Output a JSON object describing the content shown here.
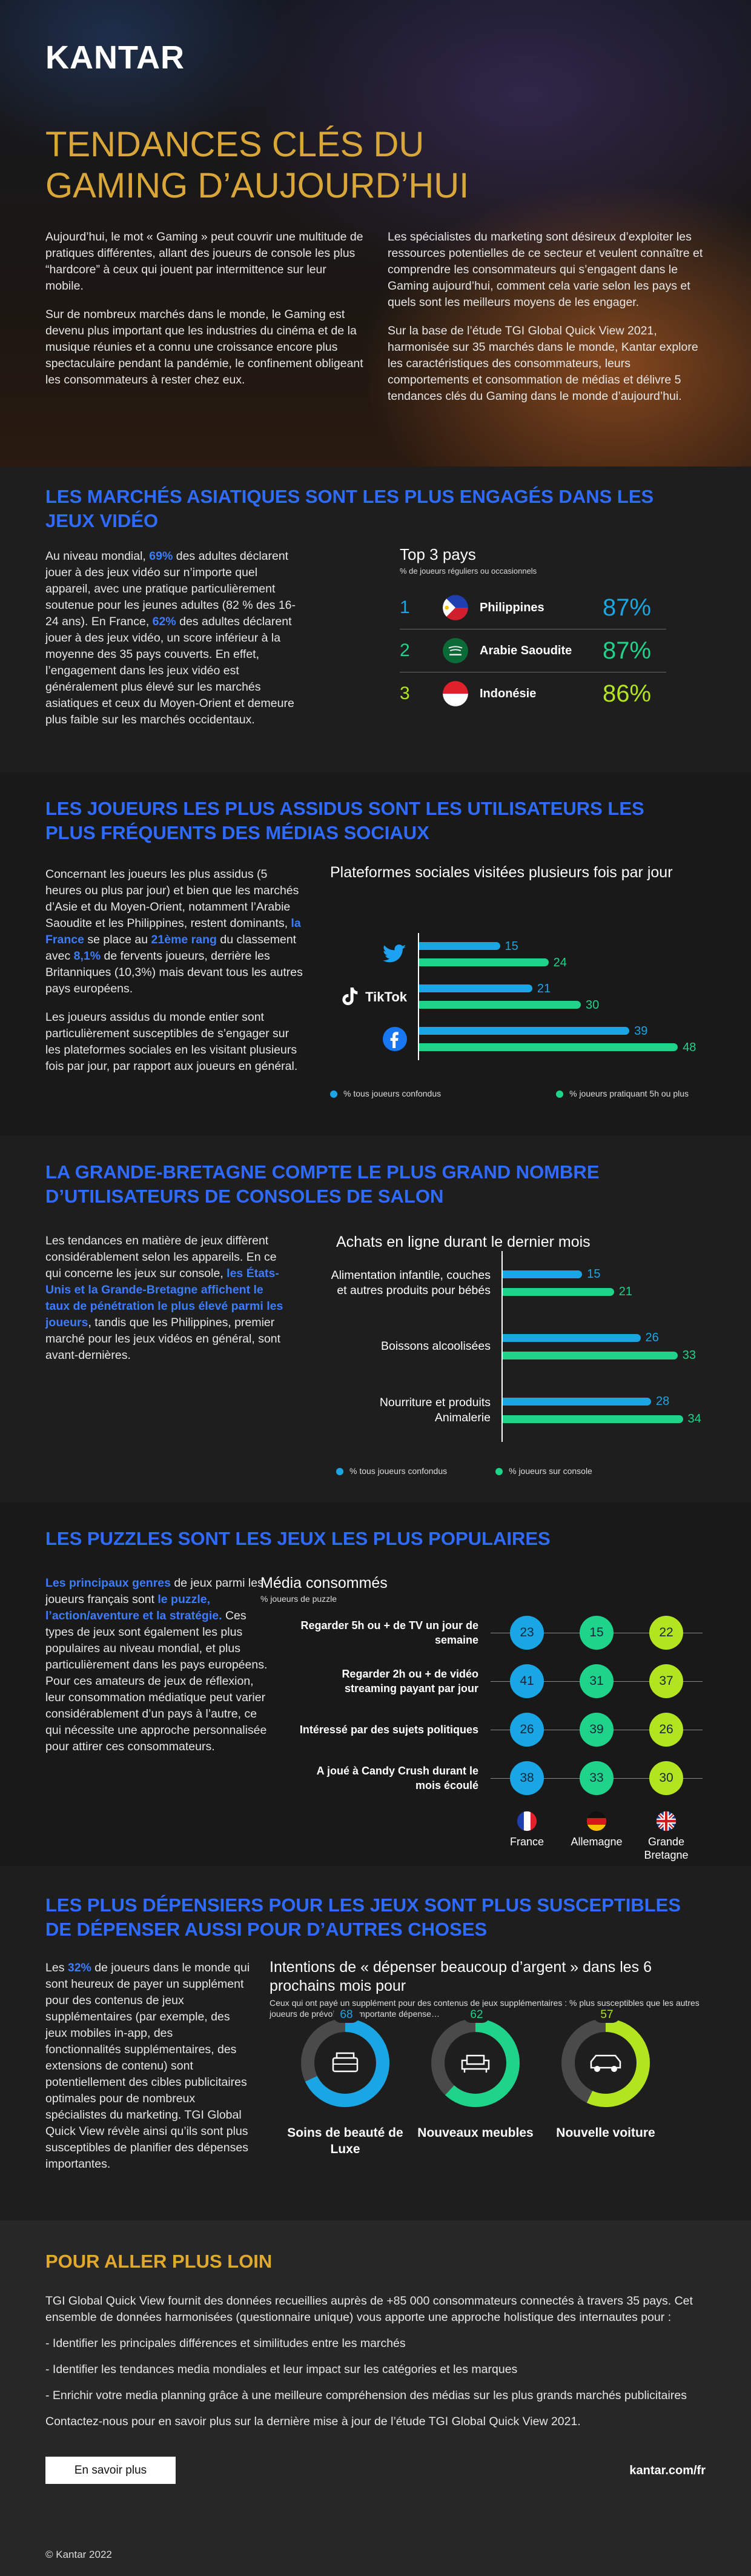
{
  "header": {
    "logo": "KANTAR",
    "title_lines": [
      "TENDANCES CLÉS DU",
      "GAMING D’AUJOURD’HUI"
    ],
    "intro_left": [
      [
        "Aujourd’hui, le mot « Gaming » peut couvrir une multitude de pratiques différentes, allant des joueurs de console les plus “hardcore” à ceux qui jouent par intermittence sur leur mobile."
      ],
      [
        "Sur de nombreux marchés dans le monde, le Gaming est devenu plus important que les industries du cinéma et de la musique réunies et a connu une croissance encore plus spectaculaire pendant la pandémie, le confinement obligeant les consommateurs à rester chez eux."
      ]
    ],
    "intro_right": [
      [
        "Les spécialistes du marketing sont désireux d’exploiter les ressources potentielles de ce secteur et veulent connaître et comprendre les consommateurs qui s’engagent dans le Gaming aujourd’hui, comment cela varie selon les pays et quels sont les meilleurs moyens de les engager."
      ],
      [
        "Sur la base de l’étude TGI Global Quick View 2021, harmonisée sur 35 marchés dans le monde, Kantar explore les caractéristiques des consommateurs, leurs comportements et consommation de médias et délivre 5 tendances clés du Gaming dans le monde d’aujourd’hui."
      ]
    ]
  },
  "sections": [
    {
      "heading": "LES MARCHÉS ASIATIQUES SONT LES PLUS ENGAGÉS DANS LES JEUX VIDÉO",
      "paragraphs": [
        [
          "Au niveau mondial, ",
          {
            "strong": "69%"
          },
          " des adultes déclarent jouer à des jeux vidéo sur n’importe quel appareil, avec une pratique particulièrement soutenue pour les jeunes adultes (82 % des 16-24 ans). En France, ",
          {
            "strong": "62%"
          },
          " des adultes déclarent jouer à des jeux vidéo, un score inférieur à la moyenne des 35 pays couverts. En effet, l’engagement dans les jeux vidéo est généralement plus élevé sur les marchés asiatiques et ceux du Moyen-Orient et demeure plus faible sur les marchés occidentaux."
        ]
      ],
      "top3": {
        "title": "Top 3 pays",
        "subtitle": "% de joueurs réguliers ou occasionnels",
        "rows": [
          {
            "rank": "1",
            "country": "Philippines",
            "value": "87%"
          },
          {
            "rank": "2",
            "country": "Arabie Saoudite",
            "value": "87%"
          },
          {
            "rank": "3",
            "country": "Indonésie",
            "value": "86%"
          }
        ]
      }
    },
    {
      "heading": "LES JOUEURS LES PLUS ASSIDUS SONT LES UTILISATEURS LES PLUS FRÉQUENTS DES MÉDIAS SOCIAUX",
      "paragraphs": [
        [
          "Concernant les joueurs les plus assidus (5 heures ou plus par jour) et bien que les marchés d’Asie et du Moyen-Orient, notamment l’Arabie Saoudite et les Philippines, restent dominants, ",
          {
            "strong": "la France"
          },
          " se place au ",
          {
            "strong": "21ème rang"
          },
          " du classement avec ",
          {
            "strong": "8,1%"
          },
          " de fervents joueurs, derrière les Britanniques (10,3%) mais devant tous les autres pays européens."
        ],
        [
          "Les joueurs assidus du monde entier sont particulièrement susceptibles de s’engager sur les plateformes sociales en les visitant plusieurs fois par jour, par rapport aux joueurs en général."
        ]
      ],
      "chart": {
        "type": "bar",
        "title": "Plateformes sociales visitées plusieurs fois par jour",
        "categories": [
          null,
          "TikTok",
          null
        ],
        "series": [
          {
            "name": "% tous joueurs confondus",
            "color": "#1aa6e4",
            "values": [
              15,
              21,
              39
            ]
          },
          {
            "name": "% joueurs pratiquant 5h ou plus",
            "color": "#1fd38b",
            "values": [
              24,
              30,
              48
            ]
          }
        ],
        "xlim": [
          0,
          50
        ]
      }
    },
    {
      "heading": "LA GRANDE-BRETAGNE COMPTE LE PLUS GRAND NOMBRE D’UTILISATEURS DE CONSOLES DE SALON",
      "paragraphs": [
        [
          "Les tendances en matière de jeux diffèrent considérablement selon les appareils. En ce qui concerne les jeux sur console, ",
          {
            "strong": "les États-Unis et la Grande-Bretagne affichent le taux de pénétration le plus élevé parmi les joueurs"
          },
          ", tandis que les Philippines, premier marché pour les jeux vidéos en général, sont avant-dernières."
        ]
      ],
      "chart": {
        "type": "bar",
        "title": "Achats en ligne durant le dernier mois",
        "categories": [
          "Alimentation infantile, couches et autres produits pour bébés",
          "Boissons alcoolisées",
          "Nourriture et produits Animalerie"
        ],
        "series": [
          {
            "name": "% tous joueurs confondus",
            "color": "#1aa6e4",
            "values": [
              15,
              26,
              28
            ]
          },
          {
            "name": "% joueurs sur console",
            "color": "#1fd38b",
            "values": [
              21,
              33,
              34
            ]
          }
        ],
        "xlim": [
          0,
          40
        ]
      }
    },
    {
      "heading": "LES PUZZLES SONT LES JEUX LES PLUS POPULAIRES",
      "paragraphs": [
        [
          {
            "strong": "Les principaux genres"
          },
          " de jeux parmi les joueurs français sont ",
          {
            "strong": "le puzzle, l’action/aventure et la stratégie."
          },
          " Ces types de jeux sont également les plus populaires au niveau mondial, et plus particulièrement dans les pays européens. Pour ces amateurs de jeux de réflexion, leur consommation médiatique peut varier considérablement d’un pays à l’autre, ce qui nécessite une approche personnalisée pour attirer ces consommateurs."
        ]
      ],
      "chart": {
        "type": "bubble-grid",
        "title": "Média consommés",
        "subtitle": "% joueurs de puzzle",
        "categories": [
          "Regarder 5h ou + de TV un jour de semaine",
          "Regarder 2h ou + de vidéo streaming payant par jour",
          "Intéressé par des sujets politiques",
          "A joué à Candy Crush durant le mois écoulé"
        ],
        "series": [
          {
            "name": "France",
            "color": "#1aa6e4",
            "values": [
              23,
              41,
              26,
              38
            ]
          },
          {
            "name": "Allemagne",
            "color": "#1fd38b",
            "values": [
              15,
              31,
              39,
              33
            ]
          },
          {
            "name": "Grande Bretagne",
            "color": "#b3e420",
            "values": [
              22,
              37,
              26,
              30
            ]
          }
        ]
      }
    },
    {
      "heading": "LES PLUS DÉPENSIERS POUR LES JEUX SONT PLUS SUSCEPTIBLES DE DÉPENSER AUSSI POUR D’AUTRES CHOSES",
      "paragraphs": [
        [
          "Les ",
          {
            "strong": "32%"
          },
          " de joueurs dans le monde qui sont heureux de payer un supplément pour des contenus de jeux supplémentaires (par exemple, des jeux mobiles in-app, des fonctionnalités supplémentaires, des extensions de contenu) sont potentiellement des cibles publicitaires optimales pour de nombreux spécialistes du marketing. TGI Global Quick View révèle ainsi qu’ils sont plus susceptibles de planifier des dépenses importantes."
        ]
      ],
      "chart": {
        "type": "donut",
        "title": "Intentions de « dépenser beaucoup d’argent » dans les 6 prochains mois pour",
        "subtitle": "Ceux qui ont payé un supplément pour des contenus de jeux supplémentaires : % plus susceptibles que les autres joueurs de prévoir une importante dépense…",
        "categories": [
          "Soins de beauté de Luxe",
          "Nouveaux meubles",
          "Nouvelle voiture"
        ],
        "values": [
          68,
          62,
          57
        ],
        "colors": [
          "#1aa6e4",
          "#1fd38b",
          "#b3e420"
        ],
        "lim": [
          0,
          100
        ]
      }
    }
  ],
  "more": {
    "heading": "POUR ALLER PLUS LOIN",
    "paragraphs": [
      [
        "TGI Global Quick View fournit des données recueillies auprès de +85 000 consommateurs connectés à travers 35 pays. Cet ensemble de données harmonisées (questionnaire unique) vous apporte une approche holistique des internautes pour :"
      ],
      [
        "- Identifier les principales différences et similitudes entre les marchés"
      ],
      [
        "- Identifier les tendances media mondiales et leur impact sur les catégories et les marques"
      ],
      [
        "- Enrichir votre media planning grâce à une meilleure compréhension des médias sur les plus grands marchés publicitaires"
      ],
      [
        "Contactez-nous pour en savoir plus sur la dernière mise à jour de l’étude TGI Global Quick View 2021."
      ]
    ],
    "button": "En savoir plus",
    "link": "kantar.com/fr",
    "copyright": "© Kantar 2022"
  }
}
